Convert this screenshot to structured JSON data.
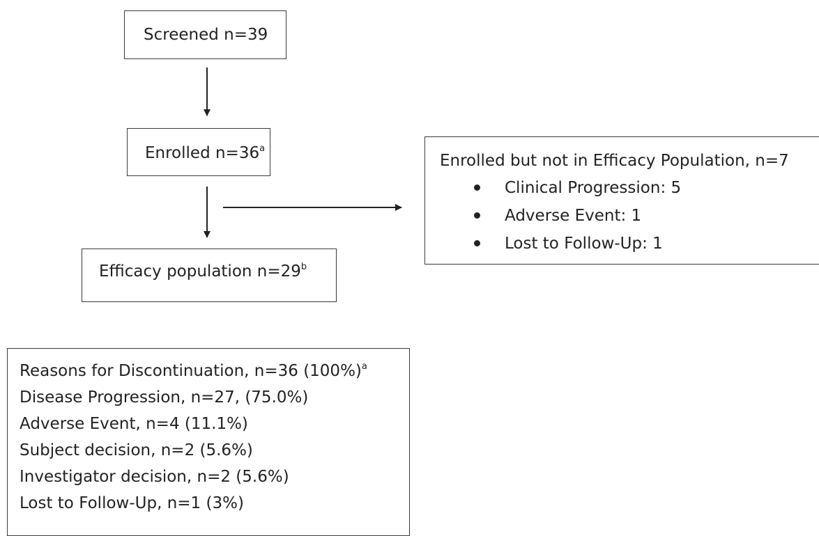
{
  "screened": {
    "label": "Screened n=39"
  },
  "enrolled": {
    "label": "Enrolled n=36",
    "footnote": "a"
  },
  "efficacy": {
    "label": "Efficacy population n=29",
    "footnote": "b"
  },
  "not_in_efficacy": {
    "title": "Enrolled but not in Efficacy Population, n=7",
    "items": [
      "Clinical Progression: 5",
      "Adverse Event: 1",
      "Lost to Follow-Up: 1"
    ]
  },
  "discontinuation": {
    "title": "Reasons for Discontinuation, n=36 (100%)",
    "title_footnote": "a",
    "items": [
      "Disease Progression, n=27, (75.0%)",
      "Adverse Event, n=4 (11.1%)",
      "Subject decision, n=2 (5.6%)",
      "Investigator decision, n=2 (5.6%)",
      "Lost to Follow-Up, n=1 (3%)"
    ]
  },
  "colors": {
    "stroke": "#3a3a3a",
    "text": "#222222",
    "background": "#ffffff"
  }
}
